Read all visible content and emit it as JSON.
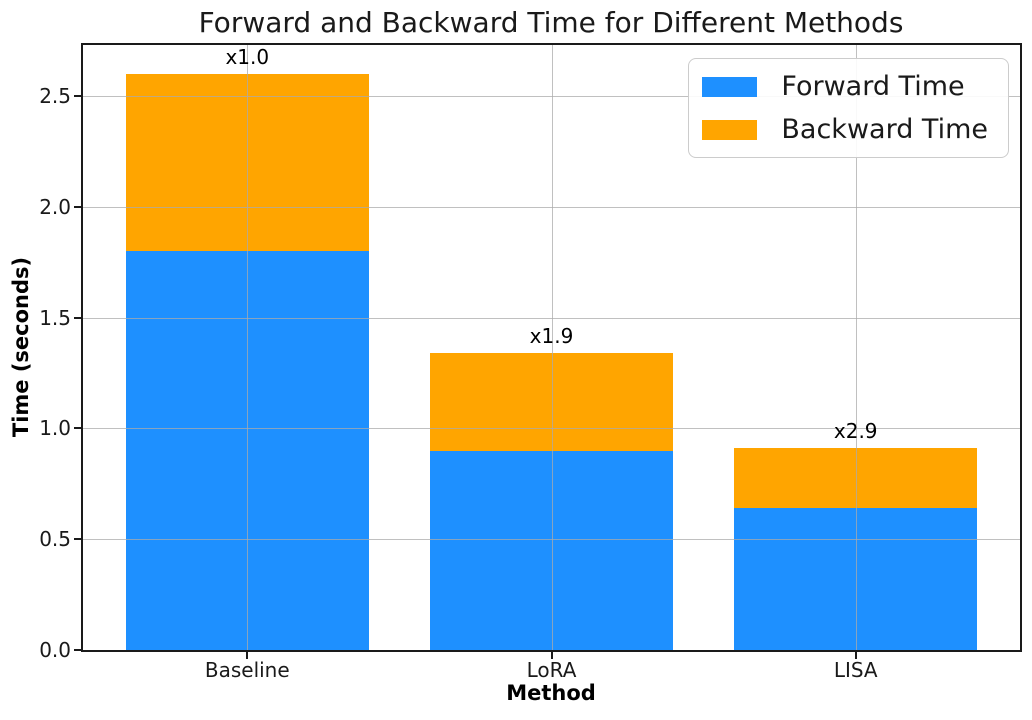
{
  "chart_data": {
    "type": "bar",
    "stacked": true,
    "title": "Forward and Backward Time for Different Methods",
    "xlabel": "Method",
    "ylabel": "Time (seconds)",
    "categories": [
      "Baseline",
      "LoRA",
      "LISA"
    ],
    "series": [
      {
        "name": "Forward Time",
        "color": "#1e90ff",
        "values": [
          1.8,
          0.9,
          0.64
        ]
      },
      {
        "name": "Backward Time",
        "color": "#ffa500",
        "values": [
          0.8,
          0.44,
          0.27
        ]
      }
    ],
    "bar_annotations": [
      "x1.0",
      "x1.9",
      "x2.9"
    ],
    "yticks": [
      {
        "value": 0.0,
        "label": "0.0"
      },
      {
        "value": 0.5,
        "label": "0.5"
      },
      {
        "value": 1.0,
        "label": "1.0"
      },
      {
        "value": 1.5,
        "label": "1.5"
      },
      {
        "value": 2.0,
        "label": "2.0"
      },
      {
        "value": 2.5,
        "label": "2.5"
      }
    ],
    "ylim": [
      0,
      2.73
    ],
    "xlim": [
      -0.54,
      2.54
    ],
    "bar_width": 0.8,
    "grid": true,
    "grid_color": "#ababab",
    "grid_on_top": true,
    "legend_position": "upper right",
    "background_color": "#ffffff",
    "spine_color": "#1a1a1a"
  }
}
